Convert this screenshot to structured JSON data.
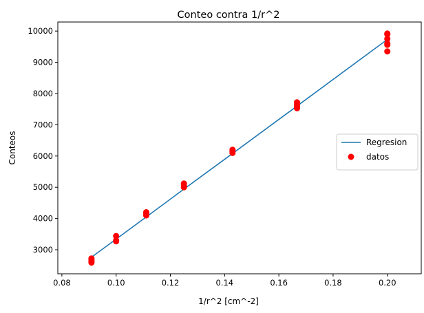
{
  "chart_data": {
    "type": "scatter",
    "title": "Conteo contra 1/r^2",
    "xlabel": "1/r^2 [cm^-2]",
    "ylabel": "Conteos",
    "xlim": [
      0.0785,
      0.2125
    ],
    "ylim": [
      2230,
      10290
    ],
    "x_ticks": [
      0.08,
      0.1,
      0.12,
      0.14,
      0.16,
      0.18,
      0.2
    ],
    "x_tick_labels": [
      "0.08",
      "0.10",
      "0.12",
      "0.14",
      "0.16",
      "0.18",
      "0.20"
    ],
    "y_ticks": [
      3000,
      4000,
      5000,
      6000,
      7000,
      8000,
      9000,
      10000
    ],
    "y_tick_labels": [
      "3000",
      "4000",
      "5000",
      "6000",
      "7000",
      "8000",
      "9000",
      "10000"
    ],
    "grid": false,
    "legend": {
      "placement": "center-right",
      "entries": [
        {
          "label": "Regresion",
          "kind": "line",
          "color": "#1f77b4"
        },
        {
          "label": "datos",
          "kind": "marker",
          "color": "#ff0000"
        }
      ]
    },
    "series": [
      {
        "name": "Regresion",
        "kind": "line",
        "color": "#1f77b4",
        "x": [
          0.0909,
          0.1,
          0.1111,
          0.125,
          0.1429,
          0.1667,
          0.2
        ],
        "y": [
          2760,
          3340,
          4050,
          4940,
          6080,
          7600,
          9730
        ]
      },
      {
        "name": "datos",
        "kind": "scatter",
        "color": "#ff0000",
        "points": [
          [
            0.0909,
            2720
          ],
          [
            0.0909,
            2670
          ],
          [
            0.0909,
            2620
          ],
          [
            0.0909,
            2590
          ],
          [
            0.1,
            3440
          ],
          [
            0.1,
            3300
          ],
          [
            0.1,
            3270
          ],
          [
            0.1111,
            4200
          ],
          [
            0.1111,
            4150
          ],
          [
            0.1111,
            4100
          ],
          [
            0.125,
            5120
          ],
          [
            0.125,
            5050
          ],
          [
            0.125,
            5000
          ],
          [
            0.1429,
            6200
          ],
          [
            0.1429,
            6150
          ],
          [
            0.1429,
            6100
          ],
          [
            0.1667,
            7720
          ],
          [
            0.1667,
            7650
          ],
          [
            0.1667,
            7580
          ],
          [
            0.1667,
            7530
          ],
          [
            0.2,
            9920
          ],
          [
            0.2,
            9900
          ],
          [
            0.2,
            9750
          ],
          [
            0.2,
            9600
          ],
          [
            0.2,
            9560
          ],
          [
            0.2,
            9350
          ]
        ]
      }
    ]
  }
}
